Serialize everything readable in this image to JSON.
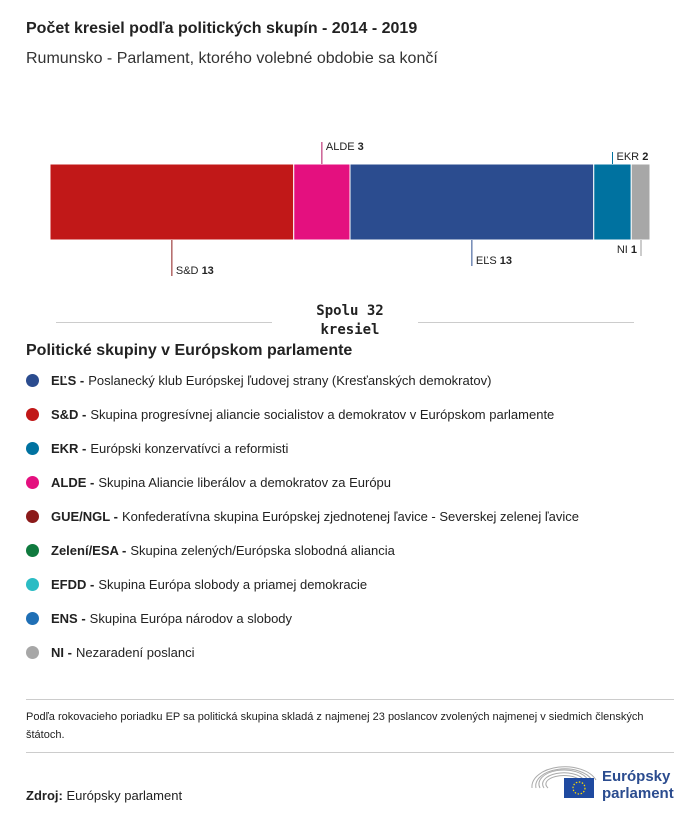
{
  "title": "Počet kresiel podľa politických skupín - 2014 - 2019",
  "subtitle": "Rumunsko - Parlament, ktorého volebné obdobie sa končí",
  "chart_data": {
    "type": "bar",
    "orientation": "horizontal-stacked",
    "categories": [
      "S&D",
      "ALDE",
      "EĽS",
      "EKR",
      "NI"
    ],
    "values": [
      13,
      3,
      13,
      2,
      1
    ],
    "colors": [
      "#c11818",
      "#e4107f",
      "#2b4c8f",
      "#0072a0",
      "#a7a7a7"
    ],
    "label_positions": [
      "below",
      "above",
      "below",
      "above",
      "below"
    ],
    "total_label_line1": "Spolu 32",
    "total_label_line2": "kresiel"
  },
  "legend": {
    "title": "Politické skupiny v Európskom parlamente",
    "items": [
      {
        "abbr": "EĽS -",
        "name": "Poslanecký klub Európskej ľudovej strany (Kresťanských demokratov)",
        "color": "#2b4c8f"
      },
      {
        "abbr": "S&D -",
        "name": "Skupina progresívnej aliancie socialistov a demokratov v Európskom parlamente",
        "color": "#c11818"
      },
      {
        "abbr": "EKR -",
        "name": "Európski konzervatívci a reformisti",
        "color": "#0072a0"
      },
      {
        "abbr": "ALDE -",
        "name": "Skupina Aliancie liberálov a demokratov za Európu",
        "color": "#e4107f"
      },
      {
        "abbr": "GUE/NGL -",
        "name": "Konfederatívna skupina Európskej zjednotenej ľavice - Severskej zelenej ľavice",
        "color": "#8b1a1a"
      },
      {
        "abbr": "Zelení/ESA -",
        "name": "Skupina zelených/Európska slobodná aliancia",
        "color": "#0f7a3e"
      },
      {
        "abbr": "EFDD -",
        "name": "Skupina Európa slobody a priamej demokracie",
        "color": "#2bbcc4"
      },
      {
        "abbr": "ENS -",
        "name": "Skupina Európa národov a slobody",
        "color": "#1f6fb5"
      },
      {
        "abbr": "NI -",
        "name": "Nezaradení poslanci",
        "color": "#a7a7a7"
      }
    ]
  },
  "note": "Podľa rokovacieho poriadku EP sa politická skupina skladá z najmenej 23 poslancov zvolených najmenej v siedmich členských štátoch.",
  "source": {
    "label": "Zdroj:",
    "value": "Európsky parlament"
  },
  "logo": {
    "line1": "Európsky",
    "line2": "parlament"
  }
}
